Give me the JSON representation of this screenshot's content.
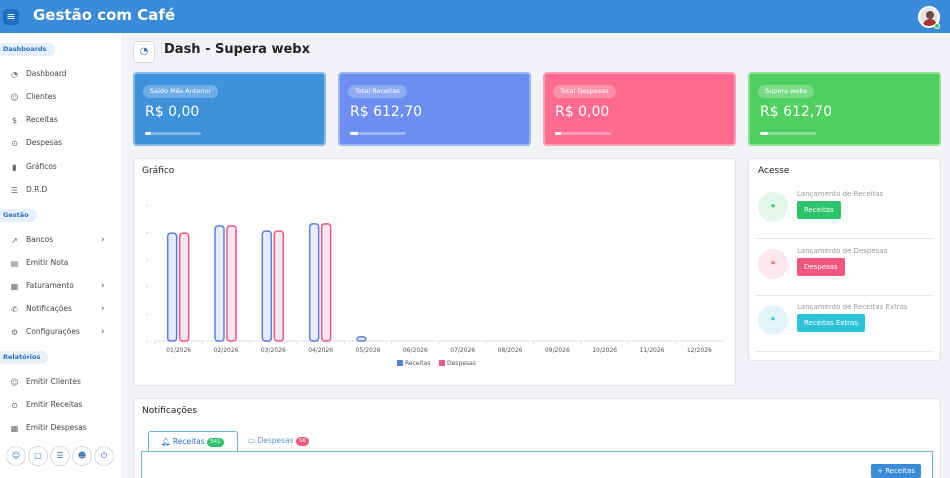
{
  "header": {
    "title": "Gestão com Café"
  },
  "sidebar": {
    "sections": [
      {
        "label": "Dashboards"
      },
      {
        "label": "Gestão"
      },
      {
        "label": "Relatórios"
      }
    ],
    "items": [
      {
        "label": "Dashboard",
        "icon": "gauge-icon"
      },
      {
        "label": "Clientes",
        "icon": "users-icon"
      },
      {
        "label": "Receitas",
        "icon": "dollar-icon"
      },
      {
        "label": "Despesas",
        "icon": "coin-icon"
      },
      {
        "label": "Gráficos",
        "icon": "bar-chart-icon"
      },
      {
        "label": "D.R.D",
        "icon": "server-icon"
      },
      {
        "label": "Bancos",
        "icon": "trend-icon"
      },
      {
        "label": "Emitir Nota",
        "icon": "receipt-icon"
      },
      {
        "label": "Faturamento",
        "icon": "calendar-icon"
      },
      {
        "label": "Notificações",
        "icon": "whatsapp-icon"
      },
      {
        "label": "Configurações",
        "icon": "gear-icon"
      },
      {
        "label": "Emitir Clientes",
        "icon": "users-icon"
      },
      {
        "label": "Emitir Receitas",
        "icon": "coin-icon"
      },
      {
        "label": "Emitir Despesas",
        "icon": "calendar-icon"
      }
    ]
  },
  "page": {
    "title": "Dash - Supera webx"
  },
  "stats": [
    {
      "label": "Saldo Mês Anterior",
      "value": "R$ 0,00",
      "color": "#3e92dc",
      "progress": 0.1
    },
    {
      "label": "Total Receitas",
      "value": "R$ 612,70",
      "color": "#6b8ef0",
      "progress": 0.15
    },
    {
      "label": "Total Despesas",
      "value": "R$ 0,00",
      "color": "#ff6b8e",
      "progress": 0.1
    },
    {
      "label": "Supera webx",
      "value": "R$ 612,70",
      "color": "#4fcf5f",
      "progress": 0.15
    }
  ],
  "chart_card": {
    "title": "Gráfico"
  },
  "chart_data": {
    "type": "bar",
    "categories": [
      "01/2026",
      "02/2026",
      "03/2026",
      "04/2026",
      "05/2026",
      "06/2026",
      "07/2026",
      "08/2026",
      "09/2026",
      "10/2026",
      "11/2026",
      "12/2026"
    ],
    "series": [
      {
        "name": "Receitas",
        "color": "#5b7fe0",
        "fill": "#e8ecf8",
        "values": [
          103,
          110,
          105,
          112,
          4,
          0,
          0,
          0,
          0,
          0,
          0,
          0
        ]
      },
      {
        "name": "Despesas",
        "color": "#f0577f",
        "fill": "#fbe8ee",
        "values": [
          103,
          110,
          105,
          112,
          0,
          0,
          0,
          0,
          0,
          0,
          0,
          0
        ]
      }
    ],
    "ylim": [
      0,
      130
    ],
    "ytick_labels": [
      "-",
      "-",
      "-",
      "-",
      "-",
      "-"
    ],
    "legend": "bottom-center",
    "grid": false
  },
  "acesse": {
    "title": "Acesse",
    "items": [
      {
        "label": "Lançamento de Receitas",
        "button": "Receitas",
        "btn_color": "#2dc36a",
        "circle_color": "#e3f8ea",
        "icon_color": "#2dc36a",
        "icon": "link-icon"
      },
      {
        "label": "Lançamento de Despesas",
        "button": "Despesas",
        "btn_color": "#f2577f",
        "circle_color": "#fde8ee",
        "icon_color": "#f2577f",
        "icon": "link-icon"
      },
      {
        "label": "Lançamento de Receitas Extras",
        "button": "Receitas Extras",
        "btn_color": "#2ec4d8",
        "circle_color": "#e2f6f9",
        "icon_color": "#2ec4d8",
        "icon": "link-icon"
      }
    ]
  },
  "notifications": {
    "title": "Notificações",
    "tabs": [
      {
        "label": "Receitas",
        "count": "541",
        "badge_color": "#2dc36a",
        "icon": "bell-icon"
      },
      {
        "label": "Despesas",
        "count": "56",
        "badge_color": "#f2577f",
        "icon": "chat-icon"
      }
    ],
    "add_button": "+ Receitas"
  }
}
